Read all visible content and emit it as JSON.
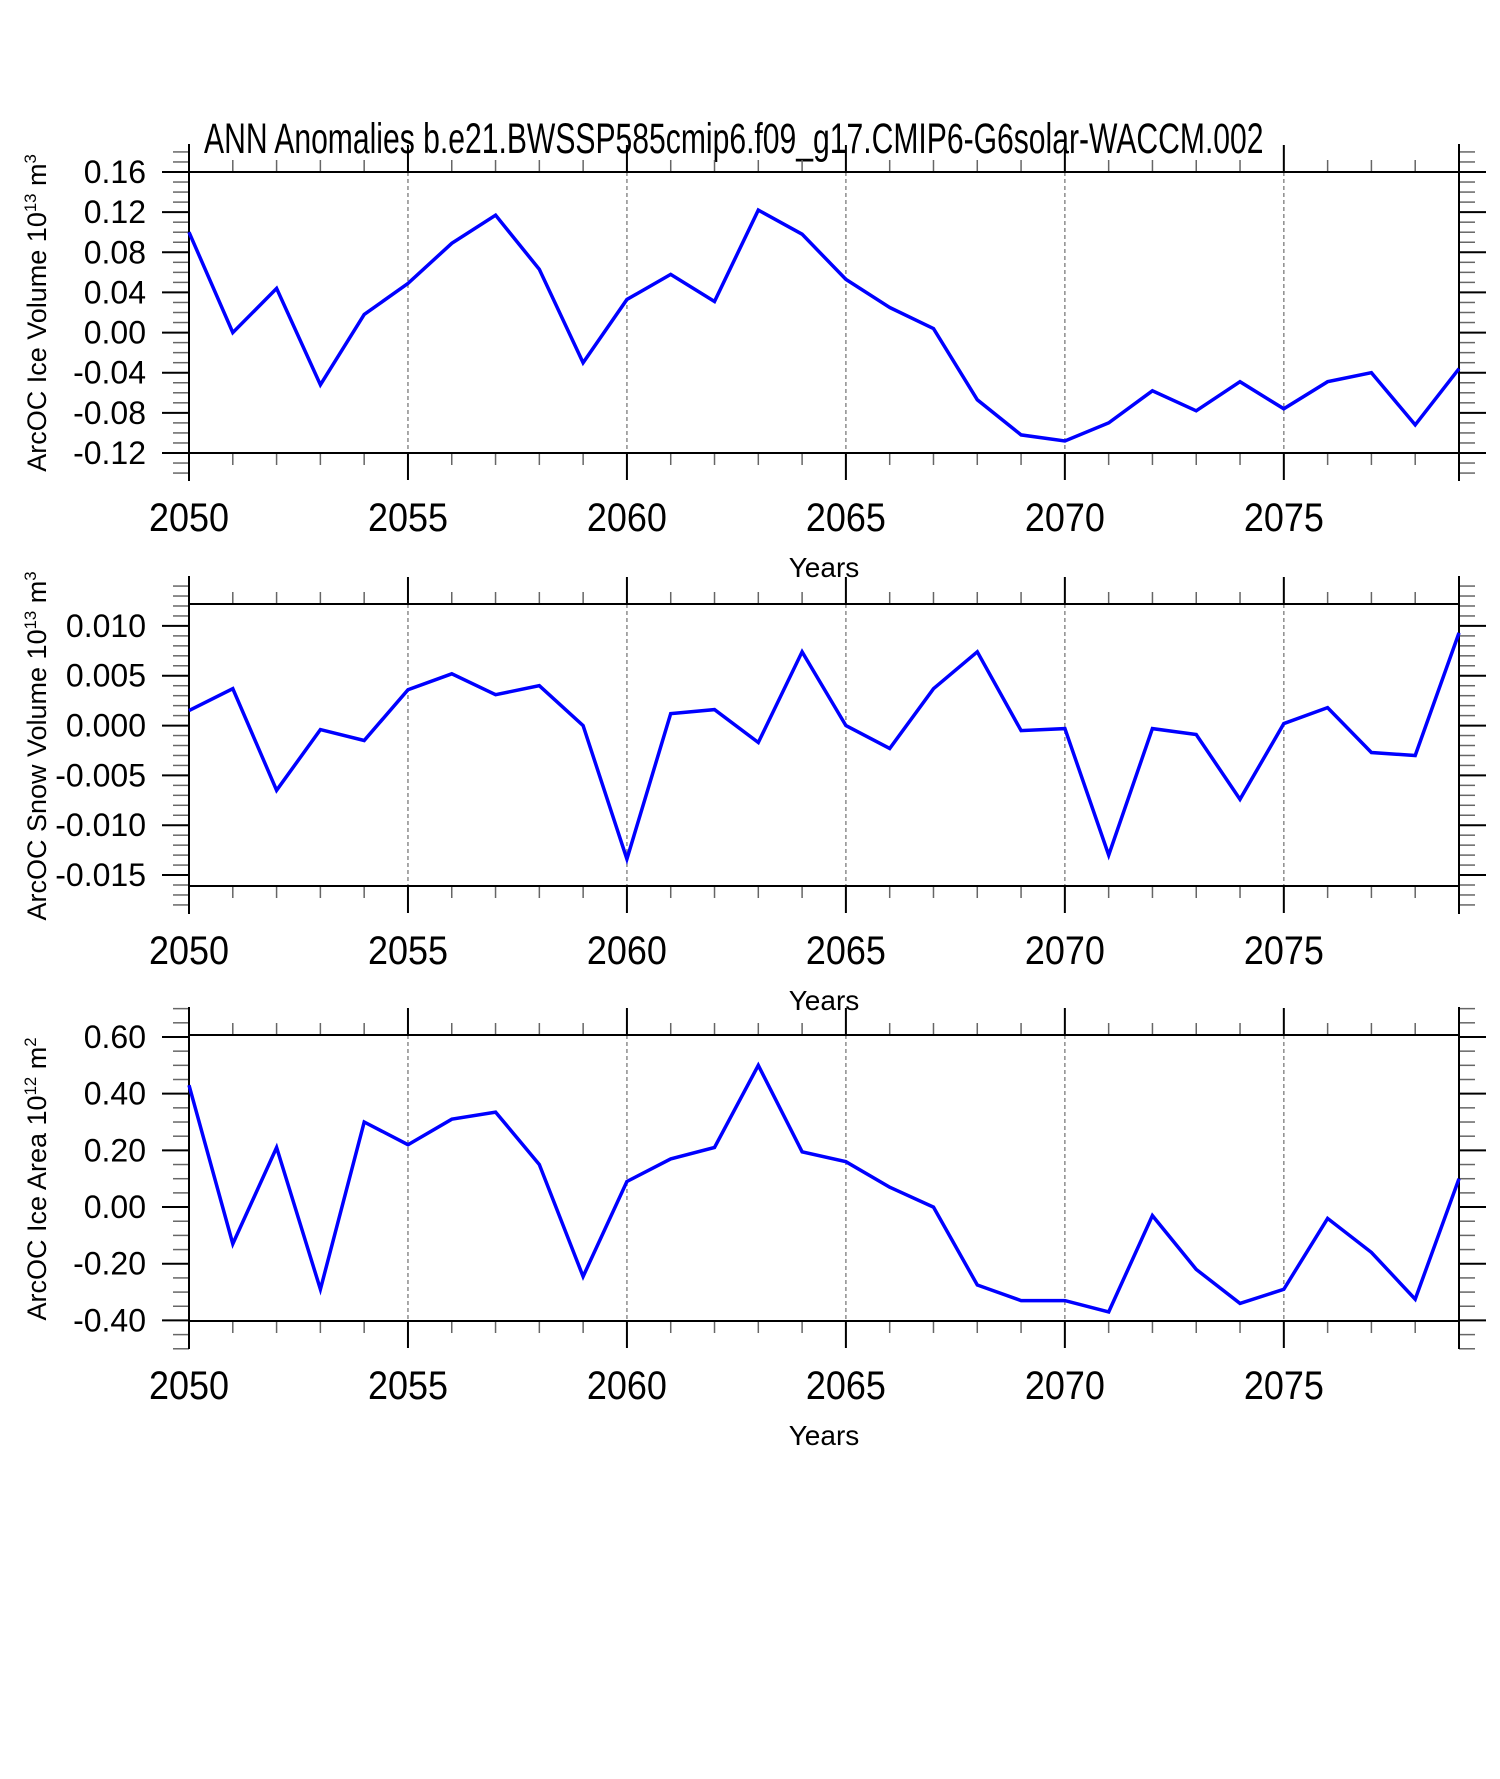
{
  "title": "ANN Anomalies b.e21.BWSSP585cmip6.f09_g17.CMIP6-G6solar-WACCM.002",
  "colors": {
    "series": "#0000ff",
    "frame": "#000000",
    "grid": "#848484",
    "minor_tick": "#666666"
  },
  "chart_data": [
    {
      "id": "ice-volume",
      "type": "line",
      "xlabel": "Years",
      "ylabel_parts": {
        "pre": "ArcOC Ice Volume 10",
        "exp": "13",
        "mid": " m",
        "exp2": "3"
      },
      "xlim": [
        2050,
        2079
      ],
      "ylim": [
        -0.12,
        0.16
      ],
      "x_major_ticks": [
        2050,
        2055,
        2060,
        2065,
        2070,
        2075
      ],
      "x_tick_labels": [
        "2050",
        "2055",
        "2060",
        "2065",
        "2070",
        "2075"
      ],
      "grid_x": [
        2055,
        2060,
        2065,
        2070,
        2075
      ],
      "y_major_ticks": [
        0.16,
        0.12,
        0.08,
        0.04,
        0.0,
        -0.04,
        -0.08,
        -0.12
      ],
      "y_tick_labels": [
        "0.16",
        "0.12",
        "0.08",
        "0.04",
        "0.00",
        "-0.04",
        "-0.08",
        "-0.12"
      ],
      "y_minor_step": 0.01,
      "x": [
        2050,
        2051,
        2052,
        2053,
        2054,
        2055,
        2056,
        2057,
        2058,
        2059,
        2060,
        2061,
        2062,
        2063,
        2064,
        2065,
        2066,
        2067,
        2068,
        2069,
        2070,
        2071,
        2072,
        2073,
        2074,
        2075,
        2076,
        2077,
        2078,
        2079
      ],
      "values": [
        0.1,
        0.0,
        0.044,
        -0.052,
        0.018,
        0.049,
        0.089,
        0.117,
        0.063,
        -0.03,
        0.033,
        0.058,
        0.031,
        0.122,
        0.098,
        0.053,
        0.025,
        0.004,
        -0.067,
        -0.102,
        -0.108,
        -0.09,
        -0.058,
        -0.078,
        -0.049,
        -0.076,
        -0.049,
        -0.04,
        -0.092,
        -0.036
      ]
    },
    {
      "id": "snow-volume",
      "type": "line",
      "xlabel": "Years",
      "ylabel_parts": {
        "pre": "ArcOC Snow Volume 10",
        "exp": "13",
        "mid": " m",
        "exp2": "3"
      },
      "xlim": [
        2050,
        2079
      ],
      "ylim": [
        -0.0161,
        0.0122
      ],
      "x_major_ticks": [
        2050,
        2055,
        2060,
        2065,
        2070,
        2075
      ],
      "x_tick_labels": [
        "2050",
        "2055",
        "2060",
        "2065",
        "2070",
        "2075"
      ],
      "grid_x": [
        2055,
        2060,
        2065,
        2070,
        2075
      ],
      "y_major_ticks": [
        0.01,
        0.005,
        0.0,
        -0.005,
        -0.01,
        -0.015
      ],
      "y_tick_labels": [
        "0.010",
        "0.005",
        "0.000",
        "-0.005",
        "-0.010",
        "-0.015"
      ],
      "y_minor_step": 0.001,
      "x": [
        2050,
        2051,
        2052,
        2053,
        2054,
        2055,
        2056,
        2057,
        2058,
        2059,
        2060,
        2061,
        2062,
        2063,
        2064,
        2065,
        2066,
        2067,
        2068,
        2069,
        2070,
        2071,
        2072,
        2073,
        2074,
        2075,
        2076,
        2077,
        2078,
        2079
      ],
      "values": [
        0.0015,
        0.0037,
        -0.0065,
        -0.0004,
        -0.0015,
        0.0036,
        0.0052,
        0.0031,
        0.004,
        0.0,
        -0.0134,
        0.0012,
        0.0016,
        -0.0017,
        0.0074,
        0.0,
        -0.0023,
        0.0037,
        0.0074,
        -0.0005,
        -0.0003,
        -0.013,
        -0.0003,
        -0.0009,
        -0.0074,
        0.0002,
        0.0018,
        -0.0027,
        -0.003,
        0.0093
      ]
    },
    {
      "id": "ice-area",
      "type": "line",
      "xlabel": "Years",
      "ylabel_parts": {
        "pre": "ArcOC Ice Area 10",
        "exp": "12",
        "mid": " m",
        "exp2": "2"
      },
      "xlim": [
        2050,
        2079
      ],
      "ylim": [
        -0.402,
        0.607
      ],
      "x_major_ticks": [
        2050,
        2055,
        2060,
        2065,
        2070,
        2075
      ],
      "x_tick_labels": [
        "2050",
        "2055",
        "2060",
        "2065",
        "2070",
        "2075"
      ],
      "grid_x": [
        2055,
        2060,
        2065,
        2070,
        2075
      ],
      "y_major_ticks": [
        0.6,
        0.4,
        0.2,
        0.0,
        -0.2,
        -0.4
      ],
      "y_tick_labels": [
        "0.60",
        "0.40",
        "0.20",
        "0.00",
        "-0.20",
        "-0.40"
      ],
      "y_minor_step": 0.05,
      "x": [
        2050,
        2051,
        2052,
        2053,
        2054,
        2055,
        2056,
        2057,
        2058,
        2059,
        2060,
        2061,
        2062,
        2063,
        2064,
        2065,
        2066,
        2067,
        2068,
        2069,
        2070,
        2071,
        2072,
        2073,
        2074,
        2075,
        2076,
        2077,
        2078,
        2079
      ],
      "values": [
        0.43,
        -0.13,
        0.21,
        -0.29,
        0.3,
        0.22,
        0.31,
        0.335,
        0.15,
        -0.245,
        0.09,
        0.17,
        0.21,
        0.5,
        0.195,
        0.16,
        0.07,
        0.0,
        -0.275,
        -0.33,
        -0.33,
        -0.37,
        -0.03,
        -0.22,
        -0.34,
        -0.29,
        -0.04,
        -0.16,
        -0.325,
        0.1
      ]
    }
  ]
}
